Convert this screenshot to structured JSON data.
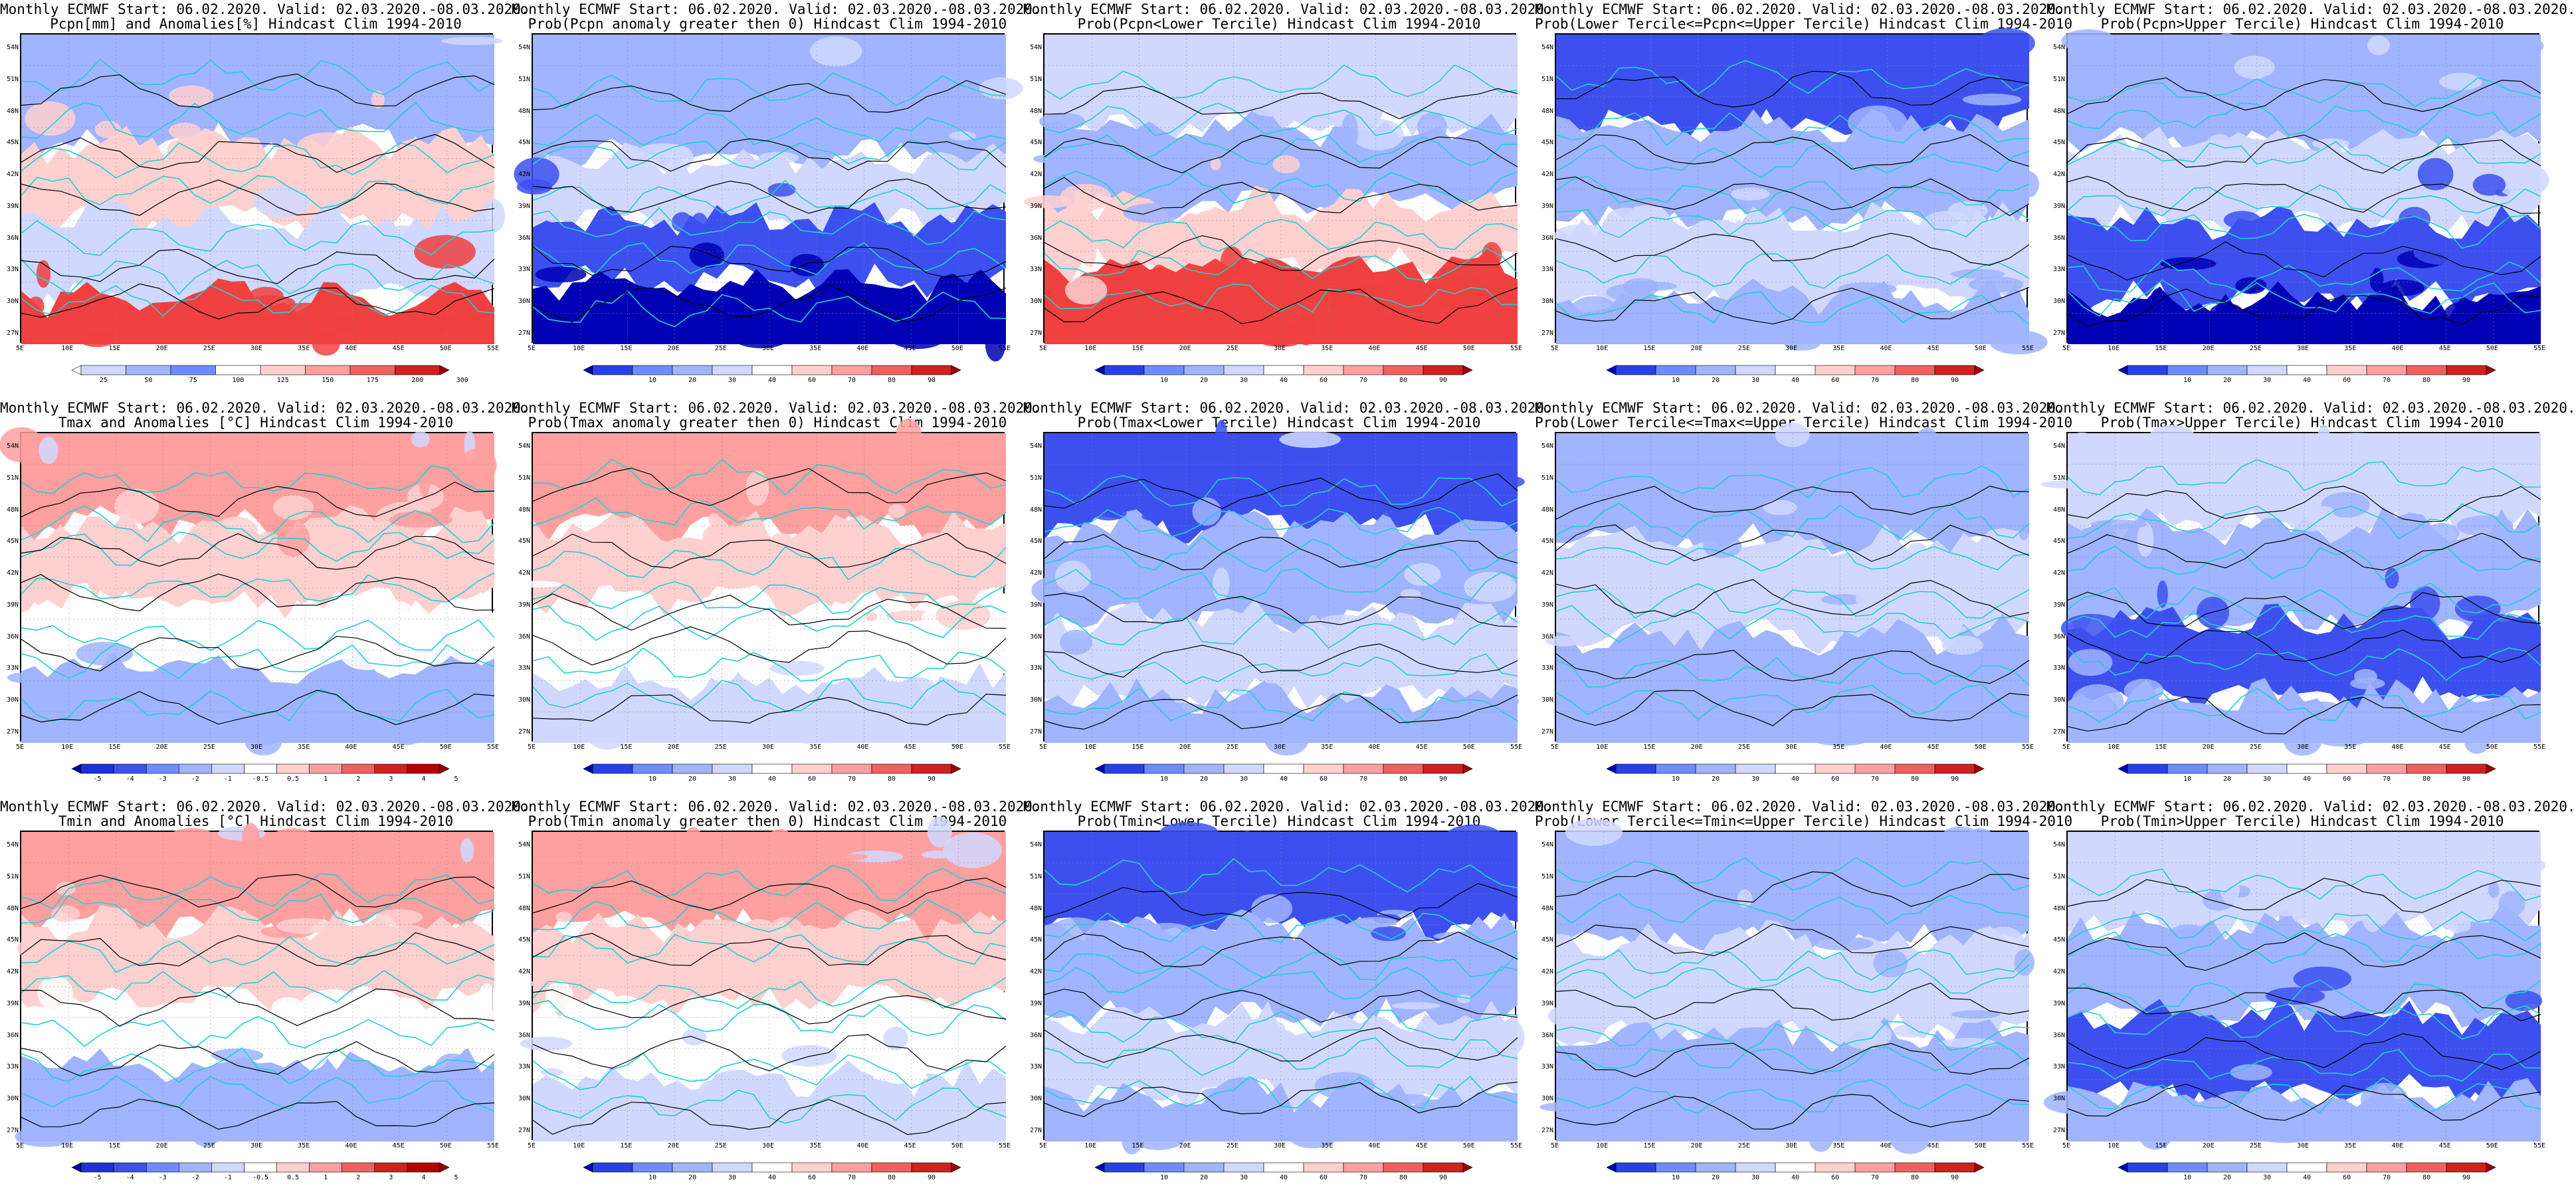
{
  "lat_ticks": [
    "54N",
    "51N",
    "48N",
    "45N",
    "42N",
    "39N",
    "36N",
    "33N",
    "30N",
    "27N"
  ],
  "lon_ticks": [
    "5E",
    "10E",
    "15E",
    "20E",
    "25E",
    "30E",
    "35E",
    "40E",
    "45E",
    "50E",
    "55E"
  ],
  "colors": {
    "coast": "#20d0d0",
    "contour": "#000000",
    "blue_dark": "#0000b4",
    "blue": "#3c50f0",
    "blue_light": "#a0b4ff",
    "blue_pale": "#d0d8ff",
    "red_pale": "#ffd0d0",
    "red_light": "#ffa0a0",
    "red": "#f04040",
    "red_dark": "#b40000"
  },
  "panels": [
    {
      "line1": "Monthly ECMWF Start: 06.02.2020. Valid: 02.03.2020.-08.03.2020.",
      "line2": "Pcpn[mm] and Anomalies[%] Hindcast Clim 1994-2010",
      "legend": [
        "25",
        "50",
        "75",
        "100",
        "125",
        "150",
        "175",
        "200",
        "300"
      ],
      "scheme": "pcpn_anom"
    },
    {
      "line1": "Monthly ECMWF Start: 06.02.2020. Valid: 02.03.2020.-08.03.2020.",
      "line2": "Prob(Pcpn anomaly greater then 0) Hindcast Clim 1994-2010",
      "legend": [
        "10",
        "20",
        "30",
        "40",
        "60",
        "70",
        "80",
        "90"
      ],
      "scheme": "pcpn_pos"
    },
    {
      "line1": "Monthly ECMWF Start: 06.02.2020. Valid: 02.03.2020.-08.03.2020.",
      "line2": "Prob(Pcpn<Lower Tercile) Hindcast Clim 1994-2010",
      "legend": [
        "10",
        "20",
        "30",
        "40",
        "60",
        "70",
        "80",
        "90"
      ],
      "scheme": "pcpn_low"
    },
    {
      "line1": "Monthly ECMWF Start: 06.02.2020. Valid: 02.03.2020.-08.03.2020.",
      "line2": "Prob(Lower Tercile<=Pcpn<=Upper Tercile) Hindcast Clim 1994-2010",
      "legend": [
        "10",
        "20",
        "30",
        "40",
        "60",
        "70",
        "80",
        "90"
      ],
      "scheme": "blue_mid"
    },
    {
      "line1": "Monthly ECMWF Start: 06.02.2020. Valid: 02.03.2020.-08.03.2020.",
      "line2": "Prob(Pcpn>Upper Tercile) Hindcast Clim 1994-2010",
      "legend": [
        "10",
        "20",
        "30",
        "40",
        "60",
        "70",
        "80",
        "90"
      ],
      "scheme": "pcpn_up"
    },
    {
      "line1": "Monthly ECMWF Start: 06.02.2020. Valid: 02.03.2020.-08.03.2020.",
      "line2": "Tmax and Anomalies [°C] Hindcast Clim 1994-2010",
      "legend": [
        "-5",
        "-4",
        "-3",
        "-2",
        "-1",
        "-0.5",
        "0.5",
        "1",
        "2",
        "3",
        "4",
        "5"
      ],
      "scheme": "t_anom"
    },
    {
      "line1": "Monthly ECMWF Start: 06.02.2020. Valid: 02.03.2020.-08.03.2020.",
      "line2": "Prob(Tmax anomaly greater then 0) Hindcast Clim 1994-2010",
      "legend": [
        "10",
        "20",
        "30",
        "40",
        "60",
        "70",
        "80",
        "90"
      ],
      "scheme": "t_pos"
    },
    {
      "line1": "Monthly ECMWF Start: 06.02.2020. Valid: 02.03.2020.-08.03.2020.",
      "line2": "Prob(Tmax<Lower Tercile) Hindcast Clim 1994-2010",
      "legend": [
        "10",
        "20",
        "30",
        "40",
        "60",
        "70",
        "80",
        "90"
      ],
      "scheme": "blue_mid"
    },
    {
      "line1": "Monthly ECMWF Start: 06.02.2020. Valid: 02.03.2020.-08.03.2020.",
      "line2": "Prob(Lower Tercile<=Tmax<=Upper Tercile) Hindcast Clim 1994-2010",
      "legend": [
        "10",
        "20",
        "30",
        "40",
        "60",
        "70",
        "80",
        "90"
      ],
      "scheme": "blue_light"
    },
    {
      "line1": "Monthly ECMWF Start: 06.02.2020. Valid: 02.03.2020.-08.03.2020.",
      "line2": "Prob(Tmax>Upper Tercile) Hindcast Clim 1994-2010",
      "legend": [
        "10",
        "20",
        "30",
        "40",
        "60",
        "70",
        "80",
        "90"
      ],
      "scheme": "t_up"
    },
    {
      "line1": "Monthly ECMWF Start: 06.02.2020. Valid: 02.03.2020.-08.03.2020.",
      "line2": "Tmin and Anomalies [°C] Hindcast Clim 1994-2010",
      "legend": [
        "-5",
        "-4",
        "-3",
        "-2",
        "-1",
        "-0.5",
        "0.5",
        "1",
        "2",
        "3",
        "4",
        "5"
      ],
      "scheme": "t_anom"
    },
    {
      "line1": "Monthly ECMWF Start: 06.02.2020. Valid: 02.03.2020.-08.03.2020.",
      "line2": "Prob(Tmin anomaly greater then 0) Hindcast Clim 1994-2010",
      "legend": [
        "10",
        "20",
        "30",
        "40",
        "60",
        "70",
        "80",
        "90"
      ],
      "scheme": "t_pos"
    },
    {
      "line1": "Monthly ECMWF Start: 06.02.2020. Valid: 02.03.2020.-08.03.2020.",
      "line2": "Prob(Tmin<Lower Tercile) Hindcast Clim 1994-2010",
      "legend": [
        "10",
        "20",
        "30",
        "40",
        "60",
        "70",
        "80",
        "90"
      ],
      "scheme": "blue_mid"
    },
    {
      "line1": "Monthly ECMWF Start: 06.02.2020. Valid: 02.03.2020.-08.03.2020.",
      "line2": "Prob(Lower Tercile<=Tmin<=Upper Tercile) Hindcast Clim 1994-2010",
      "legend": [
        "10",
        "20",
        "30",
        "40",
        "60",
        "70",
        "80",
        "90"
      ],
      "scheme": "blue_light"
    },
    {
      "line1": "Monthly ECMWF Start: 06.02.2020. Valid: 02.03.2020.-08.03.2020.",
      "line2": "Prob(Tmin>Upper Tercile) Hindcast Clim 1994-2010",
      "legend": [
        "10",
        "20",
        "30",
        "40",
        "60",
        "70",
        "80",
        "90"
      ],
      "scheme": "t_up"
    }
  ]
}
